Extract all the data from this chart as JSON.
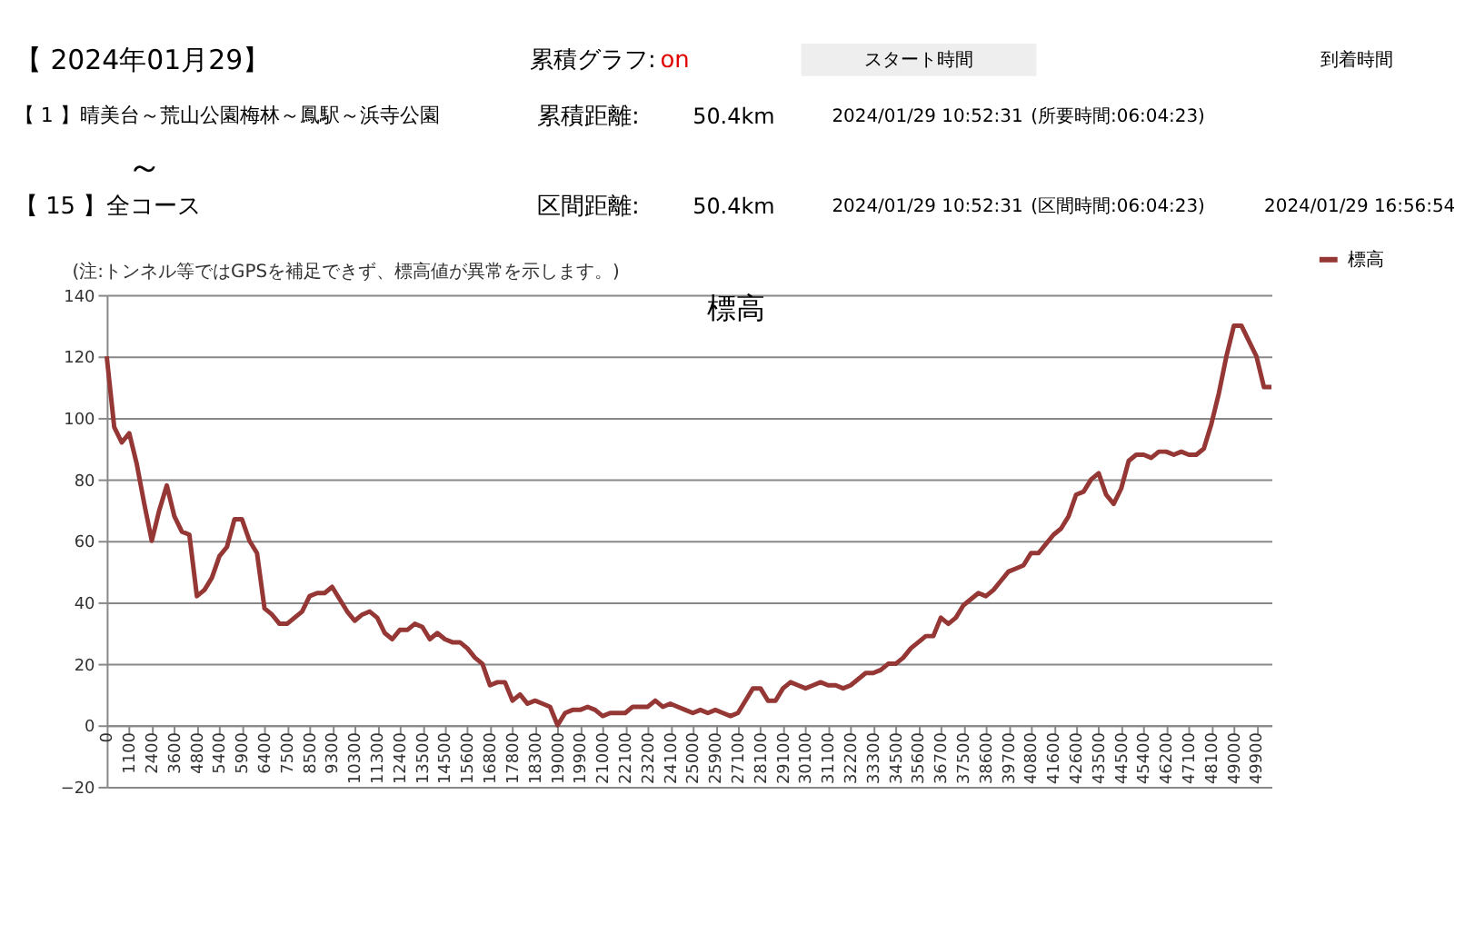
{
  "chart_data": {
    "type": "line",
    "title": "標高",
    "annotations": [
      "【 2024年01月29】",
      "累積グラフ:",
      "on",
      "スタート時間",
      "到着時間",
      "【 1 】晴美台～荒山公園梅林～鳳駅～浜寺公園",
      "累積距離:",
      "50.4km",
      "2024/01/29 10:52:31",
      "(所要時間:06:04:23)",
      "～",
      "【 15 】全コース",
      "区間距離:",
      "50.4km",
      "2024/01/29 10:52:31",
      "(区間時間:06:04:23)",
      "2024/01/29 16:56:54",
      "(注:トンネル等ではGPSを補足できず、標高値が異常を示します。)"
    ],
    "categories": [
      "0",
      null,
      null,
      "1100",
      null,
      null,
      "2400",
      null,
      null,
      "3600",
      null,
      null,
      "4800",
      null,
      null,
      "5400",
      null,
      null,
      "5900",
      null,
      null,
      "6400",
      null,
      null,
      "7500",
      null,
      null,
      "8500",
      null,
      null,
      "9300",
      null,
      null,
      "10300",
      null,
      null,
      "11300",
      null,
      null,
      "12400",
      null,
      null,
      "13500",
      null,
      null,
      "14500",
      null,
      null,
      "15600",
      null,
      null,
      "16800",
      null,
      null,
      "17800",
      null,
      null,
      "18300",
      null,
      null,
      "19000",
      null,
      null,
      "19900",
      null,
      null,
      "21000",
      null,
      null,
      "22100",
      null,
      null,
      "23200",
      null,
      null,
      "24100",
      null,
      null,
      "25000",
      null,
      null,
      "25900",
      null,
      null,
      "27100",
      null,
      null,
      "28100",
      null,
      null,
      "29100",
      null,
      null,
      "30100",
      null,
      null,
      "31100",
      null,
      null,
      "32200",
      null,
      null,
      "33300",
      null,
      null,
      "34500",
      null,
      null,
      "35600",
      null,
      null,
      "36700",
      null,
      null,
      "37500",
      null,
      null,
      "38600",
      null,
      null,
      "39700",
      null,
      null,
      "40800",
      null,
      null,
      "41600",
      null,
      null,
      "42600",
      null,
      null,
      "43500",
      null,
      null,
      "44500",
      null,
      null,
      "45400",
      null,
      null,
      "46200",
      null,
      null,
      "47100",
      null,
      null,
      "48100",
      null,
      null,
      "49000",
      null,
      null,
      "49900",
      null,
      null
    ],
    "series": [
      {
        "name": "標高",
        "color": "#953735",
        "values": [
          120,
          97,
          92,
          95,
          85,
          72,
          60,
          70,
          78,
          68,
          63,
          62,
          42,
          44,
          48,
          55,
          58,
          67,
          67,
          60,
          56,
          38,
          36,
          33,
          33,
          35,
          37,
          42,
          43,
          43,
          45,
          41,
          37,
          34,
          36,
          37,
          35,
          30,
          28,
          31,
          31,
          33,
          32,
          28,
          30,
          28,
          27,
          27,
          25,
          22,
          20,
          13,
          14,
          14,
          8,
          10,
          7,
          8,
          7,
          6,
          0,
          4,
          5,
          5,
          6,
          5,
          3,
          4,
          4,
          4,
          6,
          6,
          6,
          8,
          6,
          7,
          6,
          5,
          4,
          5,
          4,
          5,
          4,
          3,
          4,
          8,
          12,
          12,
          8,
          8,
          12,
          14,
          13,
          12,
          13,
          14,
          13,
          13,
          12,
          13,
          15,
          17,
          17,
          18,
          20,
          20,
          22,
          25,
          27,
          29,
          29,
          35,
          33,
          35,
          39,
          41,
          43,
          42,
          44,
          47,
          50,
          51,
          52,
          56,
          56,
          59,
          62,
          64,
          68,
          75,
          76,
          80,
          82,
          75,
          72,
          77,
          86,
          88,
          88,
          87,
          89,
          89,
          88,
          89,
          88,
          88,
          90,
          98,
          108,
          120,
          130,
          130,
          125,
          120,
          110,
          110
        ]
      }
    ],
    "ylim": [
      -20,
      140
    ],
    "yticks": [
      -20,
      0,
      20,
      40,
      60,
      80,
      100,
      120,
      140
    ],
    "grid": "y",
    "legend": "right",
    "marker": "none",
    "line_style": "solid"
  }
}
